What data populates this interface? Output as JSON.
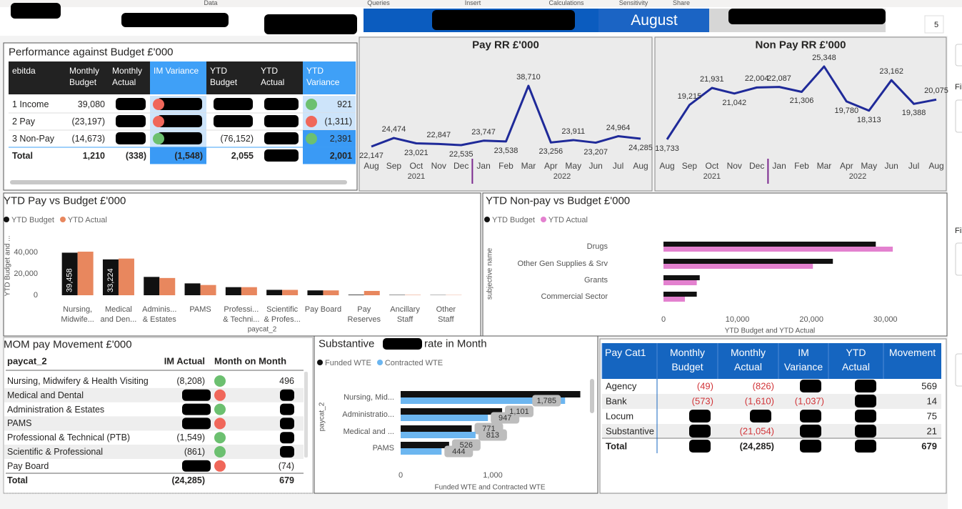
{
  "ribbon": [
    "Data",
    "Queries",
    "Insert",
    "Calculations",
    "Sensitivity",
    "Share"
  ],
  "banner": {
    "month": "August",
    "page": "5"
  },
  "sidebar": [
    "Fil",
    "Fil"
  ],
  "budget_table": {
    "title": "Performance against Budget £'000",
    "columns": [
      "ebitda",
      "Monthly Budget",
      "Monthly Actual",
      "IM Variance",
      "YTD Budget",
      "YTD Actual",
      "YTD Variance"
    ],
    "rows": [
      {
        "cells": [
          "1 Income",
          "39,080",
          null,
          null,
          null,
          null,
          "921"
        ],
        "im_status": "#f0675a",
        "ytd_status": "#6cc070"
      },
      {
        "cells": [
          "2 Pay",
          "(23,197)",
          null,
          null,
          null,
          null,
          "(1,311)"
        ],
        "im_status": "#f0675a",
        "ytd_status": "#f0675a"
      },
      {
        "cells": [
          "3 Non-Pay",
          "(14,673)",
          null,
          null,
          "(76,152)",
          null,
          "2,391"
        ],
        "im_status": "#6cc070",
        "ytd_status": "#6cc070"
      }
    ],
    "total": [
      "Total",
      "1,210",
      "(338)",
      "(1,548)",
      "2,055",
      null,
      "2,001"
    ]
  },
  "mom_table": {
    "title": "MOM pay Movement £'000",
    "columns": [
      "paycat_2",
      "IM Actual",
      "Month on Month"
    ],
    "rows": [
      {
        "cells": [
          "Nursing, Midwifery & Health Visiting",
          "(8,208)",
          "496"
        ],
        "status": "#6cc070"
      },
      {
        "cells": [
          "Medical and Dental",
          null,
          null
        ],
        "status": "#f0675a"
      },
      {
        "cells": [
          "Administration & Estates",
          null,
          null
        ],
        "status": "#6cc070"
      },
      {
        "cells": [
          "PAMS",
          null,
          null
        ],
        "status": "#f0675a"
      },
      {
        "cells": [
          "Professional & Technical (PTB)",
          "(1,549)",
          null
        ],
        "status": "#6cc070"
      },
      {
        "cells": [
          "Scientific & Professional",
          "(861)",
          null
        ],
        "status": "#6cc070"
      },
      {
        "cells": [
          "Pay Board",
          null,
          "(74)"
        ],
        "status": "#f0675a"
      }
    ],
    "total": [
      "Total",
      "(24,285)",
      "679"
    ]
  },
  "paycat_table": {
    "columns": [
      "Pay Cat1",
      "Monthly Budget",
      "Monthly Actual",
      "IM Variance",
      "YTD Actual",
      "Movement"
    ],
    "rows": [
      [
        "Agency",
        "(49)",
        "(826)",
        null,
        null,
        "569"
      ],
      [
        "Bank",
        "(573)",
        "(1,610)",
        "(1,037)",
        null,
        "14"
      ],
      [
        "Locum",
        null,
        null,
        null,
        null,
        "75"
      ],
      [
        "Substantive",
        null,
        "(21,054)",
        null,
        null,
        "21"
      ]
    ],
    "total": [
      "Total",
      null,
      "(24,285)",
      null,
      null,
      "679"
    ]
  },
  "chart_data": [
    {
      "type": "line",
      "title": "Pay RR £'000",
      "categories": [
        "Aug",
        "Sep",
        "Oct",
        "Nov",
        "Dec",
        "Jan",
        "Feb",
        "Mar",
        "Apr",
        "May",
        "Jun",
        "Jul",
        "Aug"
      ],
      "years": [
        "2021",
        "2022"
      ],
      "series": [
        {
          "color": "#1f2a99",
          "values": [
            22147,
            24474,
            23021,
            22847,
            22535,
            23747,
            23538,
            38710,
            23256,
            23911,
            23207,
            24964,
            24285
          ],
          "value_labels": [
            "22,147",
            "24,474",
            "23,021",
            "22,847",
            "22,535",
            "23,747",
            "23,538",
            "38,710",
            "23,256",
            "23,911",
            "23,207",
            "24,964",
            "24,285"
          ]
        }
      ]
    },
    {
      "type": "line",
      "title": "Non Pay RR £'000",
      "categories": [
        "Aug",
        "Sep",
        "Oct",
        "Nov",
        "Dec",
        "Jan",
        "Feb",
        "Mar",
        "Apr",
        "May",
        "Jun",
        "Jul",
        "Aug"
      ],
      "years": [
        "2021",
        "2022"
      ],
      "series": [
        {
          "color": "#1f2a99",
          "values": [
            13733,
            19215,
            21931,
            21042,
            22004,
            22087,
            21306,
            25348,
            19780,
            18313,
            23162,
            19388,
            20075
          ],
          "value_labels": [
            "13,733",
            "19,215",
            "21,931",
            "21,042",
            "22,004",
            "22,087",
            "21,306",
            "25,348",
            "19,780",
            "18,313",
            "23,162",
            "19,388",
            "20,075"
          ]
        }
      ]
    },
    {
      "type": "bar",
      "title": "YTD Pay vs Budget £'000",
      "x_label": "paycat_2",
      "y_label": "YTD Budget and ...",
      "categories": [
        "Nursing,\nMidwife...",
        "Medical\nand Den...",
        "Adminis...\n& Estates",
        "PAMS",
        "Professi...\n& Techni...",
        "Scientific\n& Profes...",
        "Pay Board",
        "Pay\nReserves",
        "Ancillary\nStaff",
        "Other\nStaff"
      ],
      "series": [
        {
          "name": "YTD Budget",
          "color": "#111111",
          "values": [
            39458,
            33224,
            17000,
            11000,
            7500,
            5000,
            4500,
            500,
            300,
            200
          ],
          "value_labels": [
            "39,458",
            "33,224",
            null,
            null,
            null,
            null,
            null,
            null,
            null,
            null
          ]
        },
        {
          "name": "YTD Actual",
          "color": "#e8875e",
          "values": [
            40400,
            34000,
            16000,
            9500,
            7500,
            5000,
            4500,
            4000,
            300,
            200
          ]
        }
      ],
      "ylim": [
        0,
        55000
      ],
      "yticks": [
        0,
        {
          "value": 20000,
          "label": "20,000"
        },
        {
          "value": 40000,
          "label": "40,000"
        }
      ]
    },
    {
      "type": "hbar",
      "title": "YTD Non-pay vs Budget £'000",
      "x_label": "YTD Budget and YTD Actual",
      "y_label": "subjective name",
      "categories": [
        "Drugs",
        "Other Gen Supplies & Srv",
        "Grants",
        "Commercial Sector"
      ],
      "series": [
        {
          "name": "YTD Budget",
          "color": "#111111",
          "values": [
            28700,
            22900,
            4900,
            4500
          ]
        },
        {
          "name": "YTD Actual",
          "color": "#e381cf",
          "values": [
            31000,
            20200,
            4500,
            2900
          ]
        }
      ],
      "xlim": [
        0,
        33500
      ],
      "xticks": [
        0,
        {
          "value": 10000,
          "label": "10,000"
        },
        {
          "value": 20000,
          "label": "20,000"
        },
        {
          "value": 30000,
          "label": "30,000"
        }
      ]
    },
    {
      "type": "hbar",
      "title": "Substantive",
      "title_end": "rate in Month",
      "x_label": "Funded WTE and Contracted WTE",
      "y_label": "paycat_2",
      "categories": [
        "Nursing, Mid...",
        "Administratio...",
        "Medical and ...",
        "PAMS"
      ],
      "series": [
        {
          "name": "Funded WTE",
          "color": "#111111",
          "values": [
            1950,
            1101,
            771,
            526
          ],
          "value_labels": [
            null,
            "1,101",
            "771",
            "526"
          ]
        },
        {
          "name": "Contracted WTE",
          "color": "#6cb6f0",
          "values": [
            1785,
            947,
            813,
            444
          ],
          "value_labels": [
            "1,785",
            "947",
            "813",
            "444"
          ]
        }
      ],
      "xlim": [
        0,
        2000
      ],
      "xticks": [
        0,
        {
          "value": 1000,
          "label": "1,000"
        }
      ]
    }
  ]
}
